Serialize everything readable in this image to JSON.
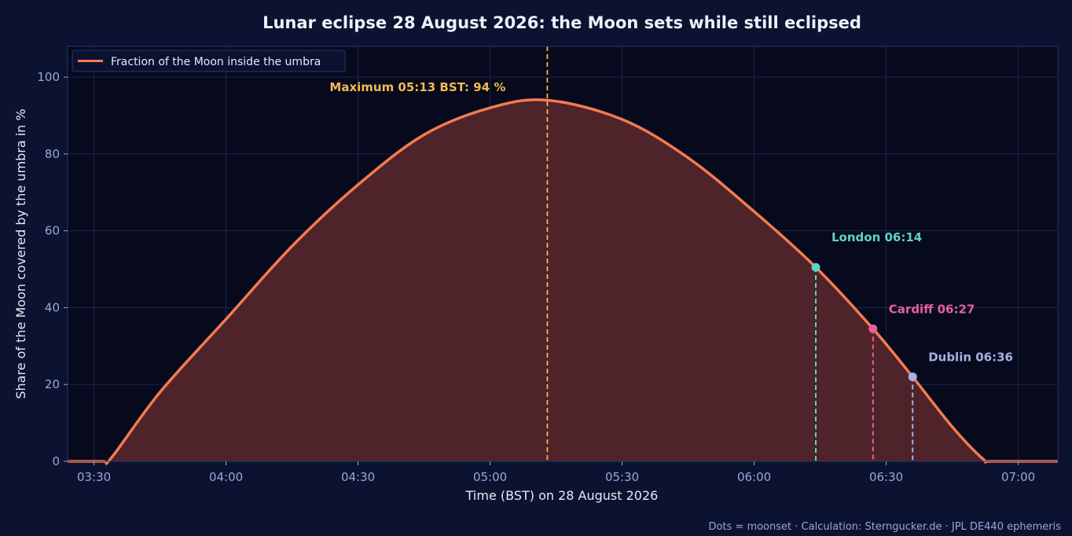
{
  "chart_data": {
    "type": "area",
    "title": "Lunar eclipse 28 August 2026: the Moon sets while still eclipsed",
    "xlabel": "Time (BST) on 28 August 2026",
    "ylabel": "Share of the Moon covered by the umbra in %",
    "xlim": [
      "03:24",
      "07:09"
    ],
    "ylim": [
      0,
      108
    ],
    "x_ticks": [
      "03:30",
      "04:00",
      "04:30",
      "05:00",
      "05:30",
      "06:00",
      "06:30",
      "07:00"
    ],
    "y_ticks": [
      0,
      20,
      40,
      60,
      80,
      100
    ],
    "grid": true,
    "legend_position": "top-left",
    "series": [
      {
        "name": "Fraction of the Moon inside the umbra",
        "color": "#f47a50",
        "fill_color": "#52252a",
        "x": [
          "03:24",
          "03:32",
          "03:34",
          "03:45",
          "04:00",
          "04:15",
          "04:30",
          "04:45",
          "05:00",
          "05:13",
          "05:30",
          "05:45",
          "06:00",
          "06:14",
          "06:27",
          "06:36",
          "06:45",
          "06:52",
          "06:54",
          "07:09"
        ],
        "y": [
          0,
          0,
          1,
          18,
          37,
          56,
          72,
          85,
          92,
          94,
          89,
          79,
          65,
          50.5,
          34.5,
          22,
          9,
          0.6,
          0,
          0
        ]
      }
    ],
    "annotations": {
      "maximum": {
        "time": "05:13",
        "value": 94,
        "label": "Maximum 05:13 BST: 94 %",
        "color": "#f2b950"
      },
      "moonsets": [
        {
          "city": "London",
          "time": "06:14",
          "value": 50.5,
          "label": "London 06:14",
          "color": "#5fd3c4"
        },
        {
          "city": "Cardiff",
          "time": "06:27",
          "value": 34.5,
          "label": "Cardiff 06:27",
          "color": "#e5609b"
        },
        {
          "city": "Dublin",
          "time": "06:36",
          "value": 22,
          "label": "Dublin 06:36",
          "color": "#a7afe4"
        }
      ]
    },
    "footnote": "Dots = moonset · Calculation: Sterngucker.de · JPL DE440 ephemeris"
  },
  "colors": {
    "page_background": "#0c1330",
    "plot_background": "#060a1c",
    "grid": "#1d2552",
    "tick_text": "#9aa6d6",
    "label_text": "#e6e9f5"
  }
}
